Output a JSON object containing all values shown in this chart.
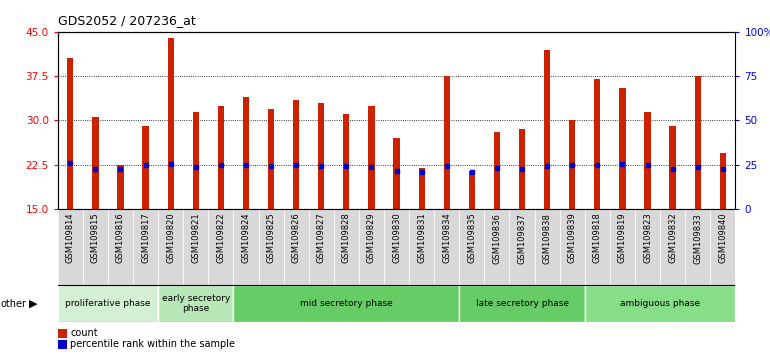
{
  "title": "GDS2052 / 207236_at",
  "samples": [
    "GSM109814",
    "GSM109815",
    "GSM109816",
    "GSM109817",
    "GSM109820",
    "GSM109821",
    "GSM109822",
    "GSM109824",
    "GSM109825",
    "GSM109826",
    "GSM109827",
    "GSM109828",
    "GSM109829",
    "GSM109830",
    "GSM109831",
    "GSM109834",
    "GSM109835",
    "GSM109836",
    "GSM109837",
    "GSM109838",
    "GSM109839",
    "GSM109818",
    "GSM109819",
    "GSM109823",
    "GSM109832",
    "GSM109833",
    "GSM109840"
  ],
  "counts": [
    40.5,
    30.5,
    22.5,
    29.0,
    44.0,
    31.5,
    32.5,
    34.0,
    32.0,
    33.5,
    33.0,
    31.0,
    32.5,
    27.0,
    22.0,
    37.5,
    21.5,
    28.0,
    28.5,
    42.0,
    30.0,
    37.0,
    35.5,
    31.5,
    29.0,
    37.5,
    24.5
  ],
  "percentile_ranks": [
    26.0,
    22.5,
    22.5,
    25.0,
    25.5,
    23.5,
    24.5,
    24.5,
    24.0,
    24.5,
    24.0,
    24.0,
    23.5,
    21.5,
    21.0,
    24.0,
    21.0,
    23.0,
    22.5,
    24.0,
    24.5,
    24.5,
    25.5,
    25.0,
    22.5,
    23.5,
    22.5
  ],
  "phases": [
    {
      "label": "proliferative phase",
      "start": 0,
      "end": 4,
      "color": "#d4f0d4"
    },
    {
      "label": "early secretory\nphase",
      "start": 4,
      "end": 7,
      "color": "#b8e8b8"
    },
    {
      "label": "mid secretory phase",
      "start": 7,
      "end": 16,
      "color": "#66cc66"
    },
    {
      "label": "late secretory phase",
      "start": 16,
      "end": 21,
      "color": "#66cc66"
    },
    {
      "label": "ambiguous phase",
      "start": 21,
      "end": 27,
      "color": "#88dd88"
    }
  ],
  "ylim": [
    15,
    45
  ],
  "y2lim": [
    0,
    100
  ],
  "yticks": [
    15,
    22.5,
    30,
    37.5,
    45
  ],
  "y2ticks": [
    0,
    25,
    50,
    75,
    100
  ],
  "bar_color": "#cc2200",
  "percentile_color": "#0000cc",
  "bar_width": 0.25,
  "other_label": "other",
  "legend_count": "count",
  "legend_percentile": "percentile rank within the sample",
  "bg_color": "#ffffff",
  "xticklabel_bg": "#d8d8d8"
}
